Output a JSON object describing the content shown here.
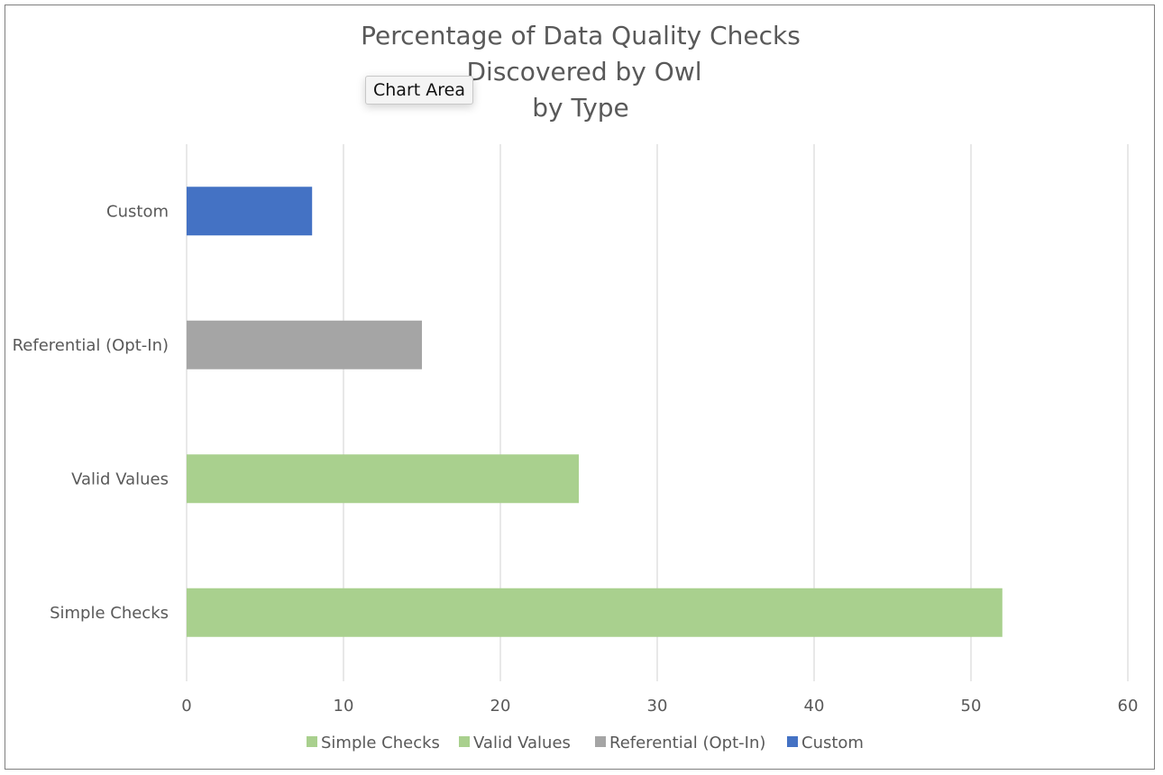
{
  "tooltip": "Chart Area",
  "chart_data": {
    "type": "bar",
    "orientation": "horizontal",
    "title_lines": [
      "Percentage of Data Quality Checks",
      "Discovered by Owl",
      "by Type"
    ],
    "categories": [
      "Simple Checks",
      "Valid Values",
      "Referential (Opt-In)",
      "Custom"
    ],
    "series": [
      {
        "name": "Simple Checks",
        "color": "#a9d08e",
        "values": [
          52,
          null,
          null,
          null
        ]
      },
      {
        "name": "Valid Values",
        "color": "#a9d08e",
        "values": [
          null,
          25,
          null,
          null
        ]
      },
      {
        "name": "Referential (Opt-In)",
        "color": "#a5a5a5",
        "values": [
          null,
          null,
          15,
          null
        ]
      },
      {
        "name": "Custom",
        "color": "#4472c4",
        "values": [
          null,
          null,
          null,
          8
        ]
      }
    ],
    "xlim": [
      0,
      60
    ],
    "x_ticks": [
      0,
      10,
      20,
      30,
      40,
      50,
      60
    ],
    "grid": "vertical",
    "legend": "bottom",
    "colors": {
      "title": "#595959",
      "axis_text": "#595959",
      "grid": "#d9d9d9"
    }
  }
}
